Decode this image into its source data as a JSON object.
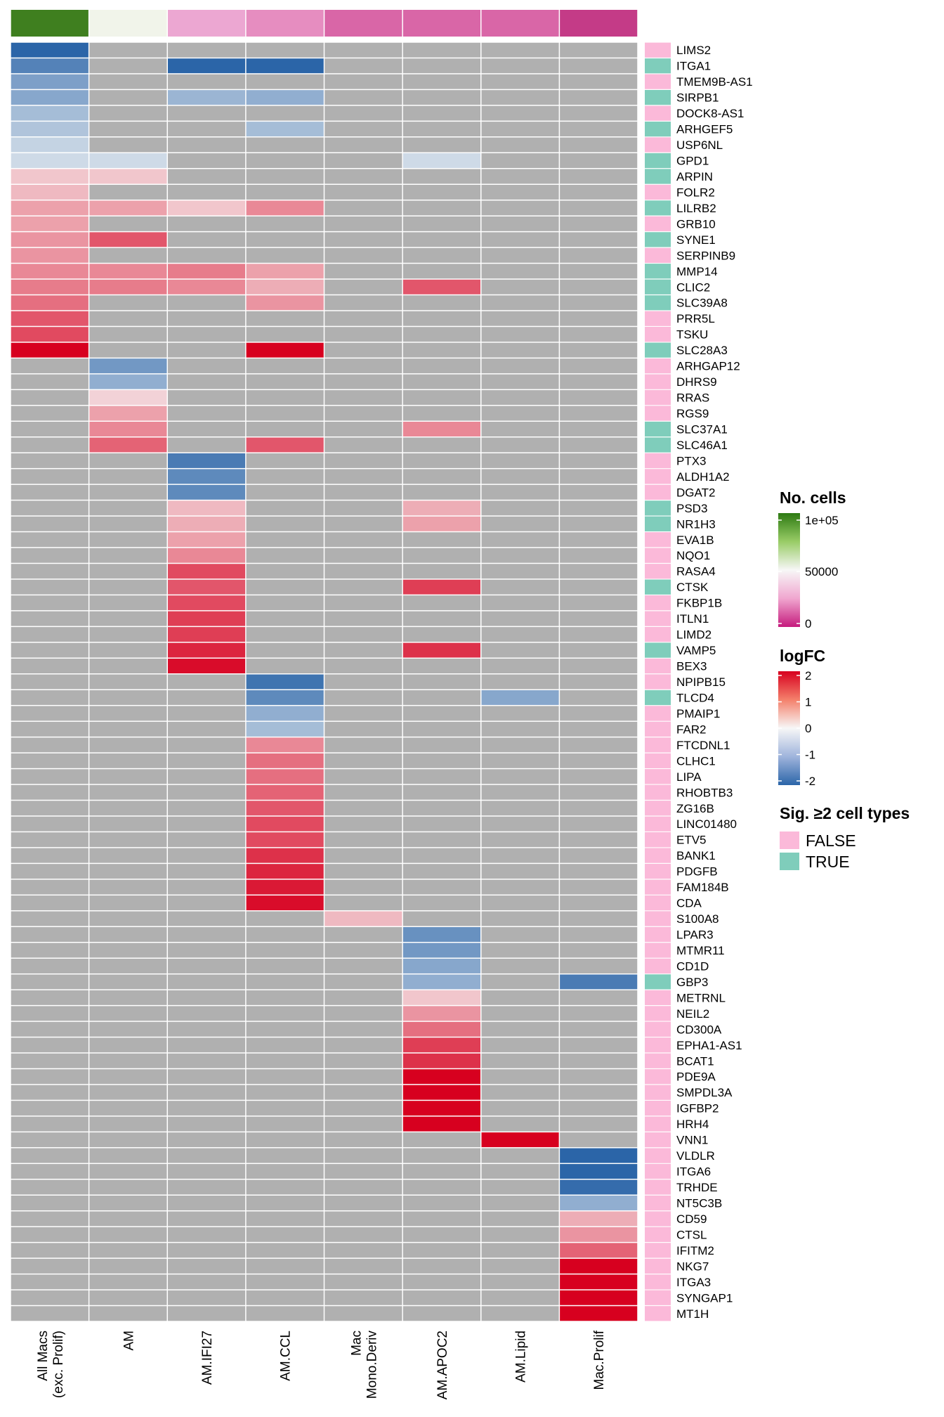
{
  "chart_data": {
    "type": "heatmap",
    "columns": [
      {
        "label_lines": [
          "All Macs",
          "(exc. Prolif)"
        ],
        "n_cells": 100000,
        "color": "#3f7f1f"
      },
      {
        "label_lines": [
          "AM"
        ],
        "n_cells": 48000,
        "color": "#f1f4ea"
      },
      {
        "label_lines": [
          "AM.IFI27"
        ],
        "n_cells": 18000,
        "color": "#eca7d2"
      },
      {
        "label_lines": [
          "AM.CCL"
        ],
        "n_cells": 15000,
        "color": "#e68dc0"
      },
      {
        "label_lines": [
          "Mac",
          "Mono.Deriv"
        ],
        "n_cells": 5000,
        "color": "#d966a7"
      },
      {
        "label_lines": [
          "AM.APOC2"
        ],
        "n_cells": 5000,
        "color": "#d966a7"
      },
      {
        "label_lines": [
          "AM.Lipid"
        ],
        "n_cells": 5000,
        "color": "#d966a7"
      },
      {
        "label_lines": [
          "Mac.Prolif"
        ],
        "n_cells": 1000,
        "color": "#c43b87"
      }
    ],
    "rows": [
      {
        "gene": "LIMS2",
        "sig": false,
        "values": [
          -2.0,
          null,
          null,
          null,
          null,
          null,
          null,
          null
        ]
      },
      {
        "gene": "ITGA1",
        "sig": true,
        "values": [
          -1.6,
          null,
          -2.0,
          -2.0,
          null,
          null,
          null,
          null
        ]
      },
      {
        "gene": "TMEM9B-AS1",
        "sig": false,
        "values": [
          -1.2,
          null,
          null,
          null,
          null,
          null,
          null,
          null
        ]
      },
      {
        "gene": "SIRPB1",
        "sig": true,
        "values": [
          -1.1,
          null,
          -0.9,
          -1.0,
          null,
          null,
          null,
          null
        ]
      },
      {
        "gene": "DOCK8-AS1",
        "sig": false,
        "values": [
          -0.8,
          null,
          null,
          null,
          null,
          null,
          null,
          null
        ]
      },
      {
        "gene": "ARHGEF5",
        "sig": true,
        "values": [
          -0.7,
          null,
          null,
          -0.8,
          null,
          null,
          null,
          null
        ]
      },
      {
        "gene": "USP6NL",
        "sig": false,
        "values": [
          -0.5,
          null,
          null,
          null,
          null,
          null,
          null,
          null
        ]
      },
      {
        "gene": "GPD1",
        "sig": true,
        "values": [
          -0.4,
          -0.4,
          null,
          null,
          null,
          -0.4,
          null,
          null
        ]
      },
      {
        "gene": "ARPIN",
        "sig": true,
        "values": [
          0.4,
          0.4,
          null,
          null,
          null,
          null,
          null,
          null
        ]
      },
      {
        "gene": "FOLR2",
        "sig": false,
        "values": [
          0.5,
          null,
          null,
          null,
          null,
          null,
          null,
          null
        ]
      },
      {
        "gene": "LILRB2",
        "sig": true,
        "values": [
          0.7,
          0.7,
          0.4,
          0.9,
          null,
          null,
          null,
          null
        ]
      },
      {
        "gene": "GRB10",
        "sig": false,
        "values": [
          0.7,
          null,
          null,
          null,
          null,
          null,
          null,
          null
        ]
      },
      {
        "gene": "SYNE1",
        "sig": true,
        "values": [
          0.8,
          1.3,
          null,
          null,
          null,
          null,
          null,
          null
        ]
      },
      {
        "gene": "SERPINB9",
        "sig": false,
        "values": [
          0.8,
          null,
          null,
          null,
          null,
          null,
          null,
          null
        ]
      },
      {
        "gene": "MMP14",
        "sig": true,
        "values": [
          0.9,
          0.9,
          1.0,
          0.7,
          null,
          null,
          null,
          null
        ]
      },
      {
        "gene": "CLIC2",
        "sig": true,
        "values": [
          1.0,
          1.0,
          0.9,
          0.6,
          null,
          1.3,
          null,
          null
        ]
      },
      {
        "gene": "SLC39A8",
        "sig": true,
        "values": [
          1.1,
          null,
          null,
          0.8,
          null,
          null,
          null,
          null
        ]
      },
      {
        "gene": "PRR5L",
        "sig": false,
        "values": [
          1.3,
          null,
          null,
          null,
          null,
          null,
          null,
          null
        ]
      },
      {
        "gene": "TSKU",
        "sig": false,
        "values": [
          1.4,
          null,
          null,
          null,
          null,
          null,
          null,
          null
        ]
      },
      {
        "gene": "SLC28A3",
        "sig": true,
        "values": [
          2.0,
          null,
          null,
          2.0,
          null,
          null,
          null,
          null
        ]
      },
      {
        "gene": "ARHGAP12",
        "sig": false,
        "values": [
          null,
          -1.3,
          null,
          null,
          null,
          null,
          null,
          null
        ]
      },
      {
        "gene": "DHRS9",
        "sig": false,
        "values": [
          null,
          -1.0,
          null,
          null,
          null,
          null,
          null,
          null
        ]
      },
      {
        "gene": "RRAS",
        "sig": false,
        "values": [
          null,
          0.3,
          null,
          null,
          null,
          null,
          null,
          null
        ]
      },
      {
        "gene": "RGS9",
        "sig": false,
        "values": [
          null,
          0.7,
          null,
          null,
          null,
          null,
          null,
          null
        ]
      },
      {
        "gene": "SLC37A1",
        "sig": true,
        "values": [
          null,
          0.9,
          null,
          null,
          null,
          0.9,
          null,
          null
        ]
      },
      {
        "gene": "SLC46A1",
        "sig": true,
        "values": [
          null,
          1.2,
          null,
          1.3,
          null,
          null,
          null,
          null
        ]
      },
      {
        "gene": "PTX3",
        "sig": false,
        "values": [
          null,
          null,
          -1.7,
          null,
          null,
          null,
          null,
          null
        ]
      },
      {
        "gene": "ALDH1A2",
        "sig": false,
        "values": [
          null,
          null,
          -1.5,
          null,
          null,
          null,
          null,
          null
        ]
      },
      {
        "gene": "DGAT2",
        "sig": false,
        "values": [
          null,
          null,
          -1.5,
          null,
          null,
          null,
          null,
          null
        ]
      },
      {
        "gene": "PSD3",
        "sig": true,
        "values": [
          null,
          null,
          0.5,
          null,
          null,
          0.6,
          null,
          null
        ]
      },
      {
        "gene": "NR1H3",
        "sig": true,
        "values": [
          null,
          null,
          0.6,
          null,
          null,
          0.7,
          null,
          null
        ]
      },
      {
        "gene": "EVA1B",
        "sig": false,
        "values": [
          null,
          null,
          0.7,
          null,
          null,
          null,
          null,
          null
        ]
      },
      {
        "gene": "NQO1",
        "sig": false,
        "values": [
          null,
          null,
          0.9,
          null,
          null,
          null,
          null,
          null
        ]
      },
      {
        "gene": "RASA4",
        "sig": false,
        "values": [
          null,
          null,
          1.4,
          null,
          null,
          null,
          null,
          null
        ]
      },
      {
        "gene": "CTSK",
        "sig": true,
        "values": [
          null,
          null,
          1.3,
          null,
          null,
          1.5,
          null,
          null
        ]
      },
      {
        "gene": "FKBP1B",
        "sig": false,
        "values": [
          null,
          null,
          1.4,
          null,
          null,
          null,
          null,
          null
        ]
      },
      {
        "gene": "ITLN1",
        "sig": false,
        "values": [
          null,
          null,
          1.5,
          null,
          null,
          null,
          null,
          null
        ]
      },
      {
        "gene": "LIMD2",
        "sig": false,
        "values": [
          null,
          null,
          1.5,
          null,
          null,
          null,
          null,
          null
        ]
      },
      {
        "gene": "VAMP5",
        "sig": true,
        "values": [
          null,
          null,
          1.7,
          null,
          null,
          1.6,
          null,
          null
        ]
      },
      {
        "gene": "BEX3",
        "sig": false,
        "values": [
          null,
          null,
          1.9,
          null,
          null,
          null,
          null,
          null
        ]
      },
      {
        "gene": "NPIPB15",
        "sig": false,
        "values": [
          null,
          null,
          null,
          -1.8,
          null,
          null,
          null,
          null
        ]
      },
      {
        "gene": "TLCD4",
        "sig": true,
        "values": [
          null,
          null,
          null,
          -1.5,
          null,
          null,
          -1.1,
          null
        ]
      },
      {
        "gene": "PMAIP1",
        "sig": false,
        "values": [
          null,
          null,
          null,
          -1.0,
          null,
          null,
          null,
          null
        ]
      },
      {
        "gene": "FAR2",
        "sig": false,
        "values": [
          null,
          null,
          null,
          -0.8,
          null,
          null,
          null,
          null
        ]
      },
      {
        "gene": "FTCDNL1",
        "sig": false,
        "values": [
          null,
          null,
          null,
          0.9,
          null,
          null,
          null,
          null
        ]
      },
      {
        "gene": "CLHC1",
        "sig": false,
        "values": [
          null,
          null,
          null,
          1.1,
          null,
          null,
          null,
          null
        ]
      },
      {
        "gene": "LIPA",
        "sig": false,
        "values": [
          null,
          null,
          null,
          1.1,
          null,
          null,
          null,
          null
        ]
      },
      {
        "gene": "RHOBTB3",
        "sig": false,
        "values": [
          null,
          null,
          null,
          1.2,
          null,
          null,
          null,
          null
        ]
      },
      {
        "gene": "ZG16B",
        "sig": false,
        "values": [
          null,
          null,
          null,
          1.3,
          null,
          null,
          null,
          null
        ]
      },
      {
        "gene": "LINC01480",
        "sig": false,
        "values": [
          null,
          null,
          null,
          1.4,
          null,
          null,
          null,
          null
        ]
      },
      {
        "gene": "ETV5",
        "sig": false,
        "values": [
          null,
          null,
          null,
          1.4,
          null,
          null,
          null,
          null
        ]
      },
      {
        "gene": "BANK1",
        "sig": false,
        "values": [
          null,
          null,
          null,
          1.6,
          null,
          null,
          null,
          null
        ]
      },
      {
        "gene": "PDGFB",
        "sig": false,
        "values": [
          null,
          null,
          null,
          1.7,
          null,
          null,
          null,
          null
        ]
      },
      {
        "gene": "FAM184B",
        "sig": false,
        "values": [
          null,
          null,
          null,
          1.8,
          null,
          null,
          null,
          null
        ]
      },
      {
        "gene": "CDA",
        "sig": false,
        "values": [
          null,
          null,
          null,
          1.9,
          null,
          null,
          null,
          null
        ]
      },
      {
        "gene": "S100A8",
        "sig": false,
        "values": [
          null,
          null,
          null,
          null,
          0.5,
          null,
          null,
          null
        ]
      },
      {
        "gene": "LPAR3",
        "sig": false,
        "values": [
          null,
          null,
          null,
          null,
          null,
          -1.4,
          null,
          null
        ]
      },
      {
        "gene": "MTMR11",
        "sig": false,
        "values": [
          null,
          null,
          null,
          null,
          null,
          -1.3,
          null,
          null
        ]
      },
      {
        "gene": "CD1D",
        "sig": false,
        "values": [
          null,
          null,
          null,
          null,
          null,
          -1.1,
          null,
          null
        ]
      },
      {
        "gene": "GBP3",
        "sig": true,
        "values": [
          null,
          null,
          null,
          null,
          null,
          -1.0,
          null,
          -1.7
        ]
      },
      {
        "gene": "METRNL",
        "sig": false,
        "values": [
          null,
          null,
          null,
          null,
          null,
          0.4,
          null,
          null
        ]
      },
      {
        "gene": "NEIL2",
        "sig": false,
        "values": [
          null,
          null,
          null,
          null,
          null,
          0.8,
          null,
          null
        ]
      },
      {
        "gene": "CD300A",
        "sig": false,
        "values": [
          null,
          null,
          null,
          null,
          null,
          1.1,
          null,
          null
        ]
      },
      {
        "gene": "EPHA1-AS1",
        "sig": false,
        "values": [
          null,
          null,
          null,
          null,
          null,
          1.5,
          null,
          null
        ]
      },
      {
        "gene": "BCAT1",
        "sig": false,
        "values": [
          null,
          null,
          null,
          null,
          null,
          1.6,
          null,
          null
        ]
      },
      {
        "gene": "PDE9A",
        "sig": false,
        "values": [
          null,
          null,
          null,
          null,
          null,
          2.0,
          null,
          null
        ]
      },
      {
        "gene": "SMPDL3A",
        "sig": false,
        "values": [
          null,
          null,
          null,
          null,
          null,
          2.0,
          null,
          null
        ]
      },
      {
        "gene": "IGFBP2",
        "sig": false,
        "values": [
          null,
          null,
          null,
          null,
          null,
          2.0,
          null,
          null
        ]
      },
      {
        "gene": "HRH4",
        "sig": false,
        "values": [
          null,
          null,
          null,
          null,
          null,
          2.0,
          null,
          null
        ]
      },
      {
        "gene": "VNN1",
        "sig": false,
        "values": [
          null,
          null,
          null,
          null,
          null,
          null,
          2.0,
          null
        ]
      },
      {
        "gene": "VLDLR",
        "sig": false,
        "values": [
          null,
          null,
          null,
          null,
          null,
          null,
          null,
          -2.0
        ]
      },
      {
        "gene": "ITGA6",
        "sig": false,
        "values": [
          null,
          null,
          null,
          null,
          null,
          null,
          null,
          -2.0
        ]
      },
      {
        "gene": "TRHDE",
        "sig": false,
        "values": [
          null,
          null,
          null,
          null,
          null,
          null,
          null,
          -1.9
        ]
      },
      {
        "gene": "NT5C3B",
        "sig": false,
        "values": [
          null,
          null,
          null,
          null,
          null,
          null,
          null,
          -1.0
        ]
      },
      {
        "gene": "CD59",
        "sig": false,
        "values": [
          null,
          null,
          null,
          null,
          null,
          null,
          null,
          0.6
        ]
      },
      {
        "gene": "CTSL",
        "sig": false,
        "values": [
          null,
          null,
          null,
          null,
          null,
          null,
          null,
          0.8
        ]
      },
      {
        "gene": "IFITM2",
        "sig": false,
        "values": [
          null,
          null,
          null,
          null,
          null,
          null,
          null,
          1.2
        ]
      },
      {
        "gene": "NKG7",
        "sig": false,
        "values": [
          null,
          null,
          null,
          null,
          null,
          null,
          null,
          2.0
        ]
      },
      {
        "gene": "ITGA3",
        "sig": false,
        "values": [
          null,
          null,
          null,
          null,
          null,
          null,
          null,
          2.0
        ]
      },
      {
        "gene": "SYNGAP1",
        "sig": false,
        "values": [
          null,
          null,
          null,
          null,
          null,
          null,
          null,
          2.0
        ]
      },
      {
        "gene": "MT1H",
        "sig": false,
        "values": [
          null,
          null,
          null,
          null,
          null,
          null,
          null,
          2.0
        ]
      }
    ],
    "color_scale": {
      "min": -2,
      "max": 2,
      "na_color": "#b0b0b0"
    },
    "legends": {
      "cells": {
        "title": "No. cells",
        "ticks": [
          "1e+05",
          "50000",
          "0"
        ],
        "range": [
          0,
          100000
        ]
      },
      "logfc": {
        "title": "logFC",
        "ticks": [
          "2",
          "1",
          "0",
          "-1",
          "-2"
        ],
        "range": [
          -2,
          2
        ]
      },
      "sig": {
        "title": "Sig. ≥2 cell types",
        "entries": [
          {
            "label": "FALSE",
            "color": "#fbb9d9"
          },
          {
            "label": "TRUE",
            "color": "#7fcdbb"
          }
        ]
      }
    }
  }
}
